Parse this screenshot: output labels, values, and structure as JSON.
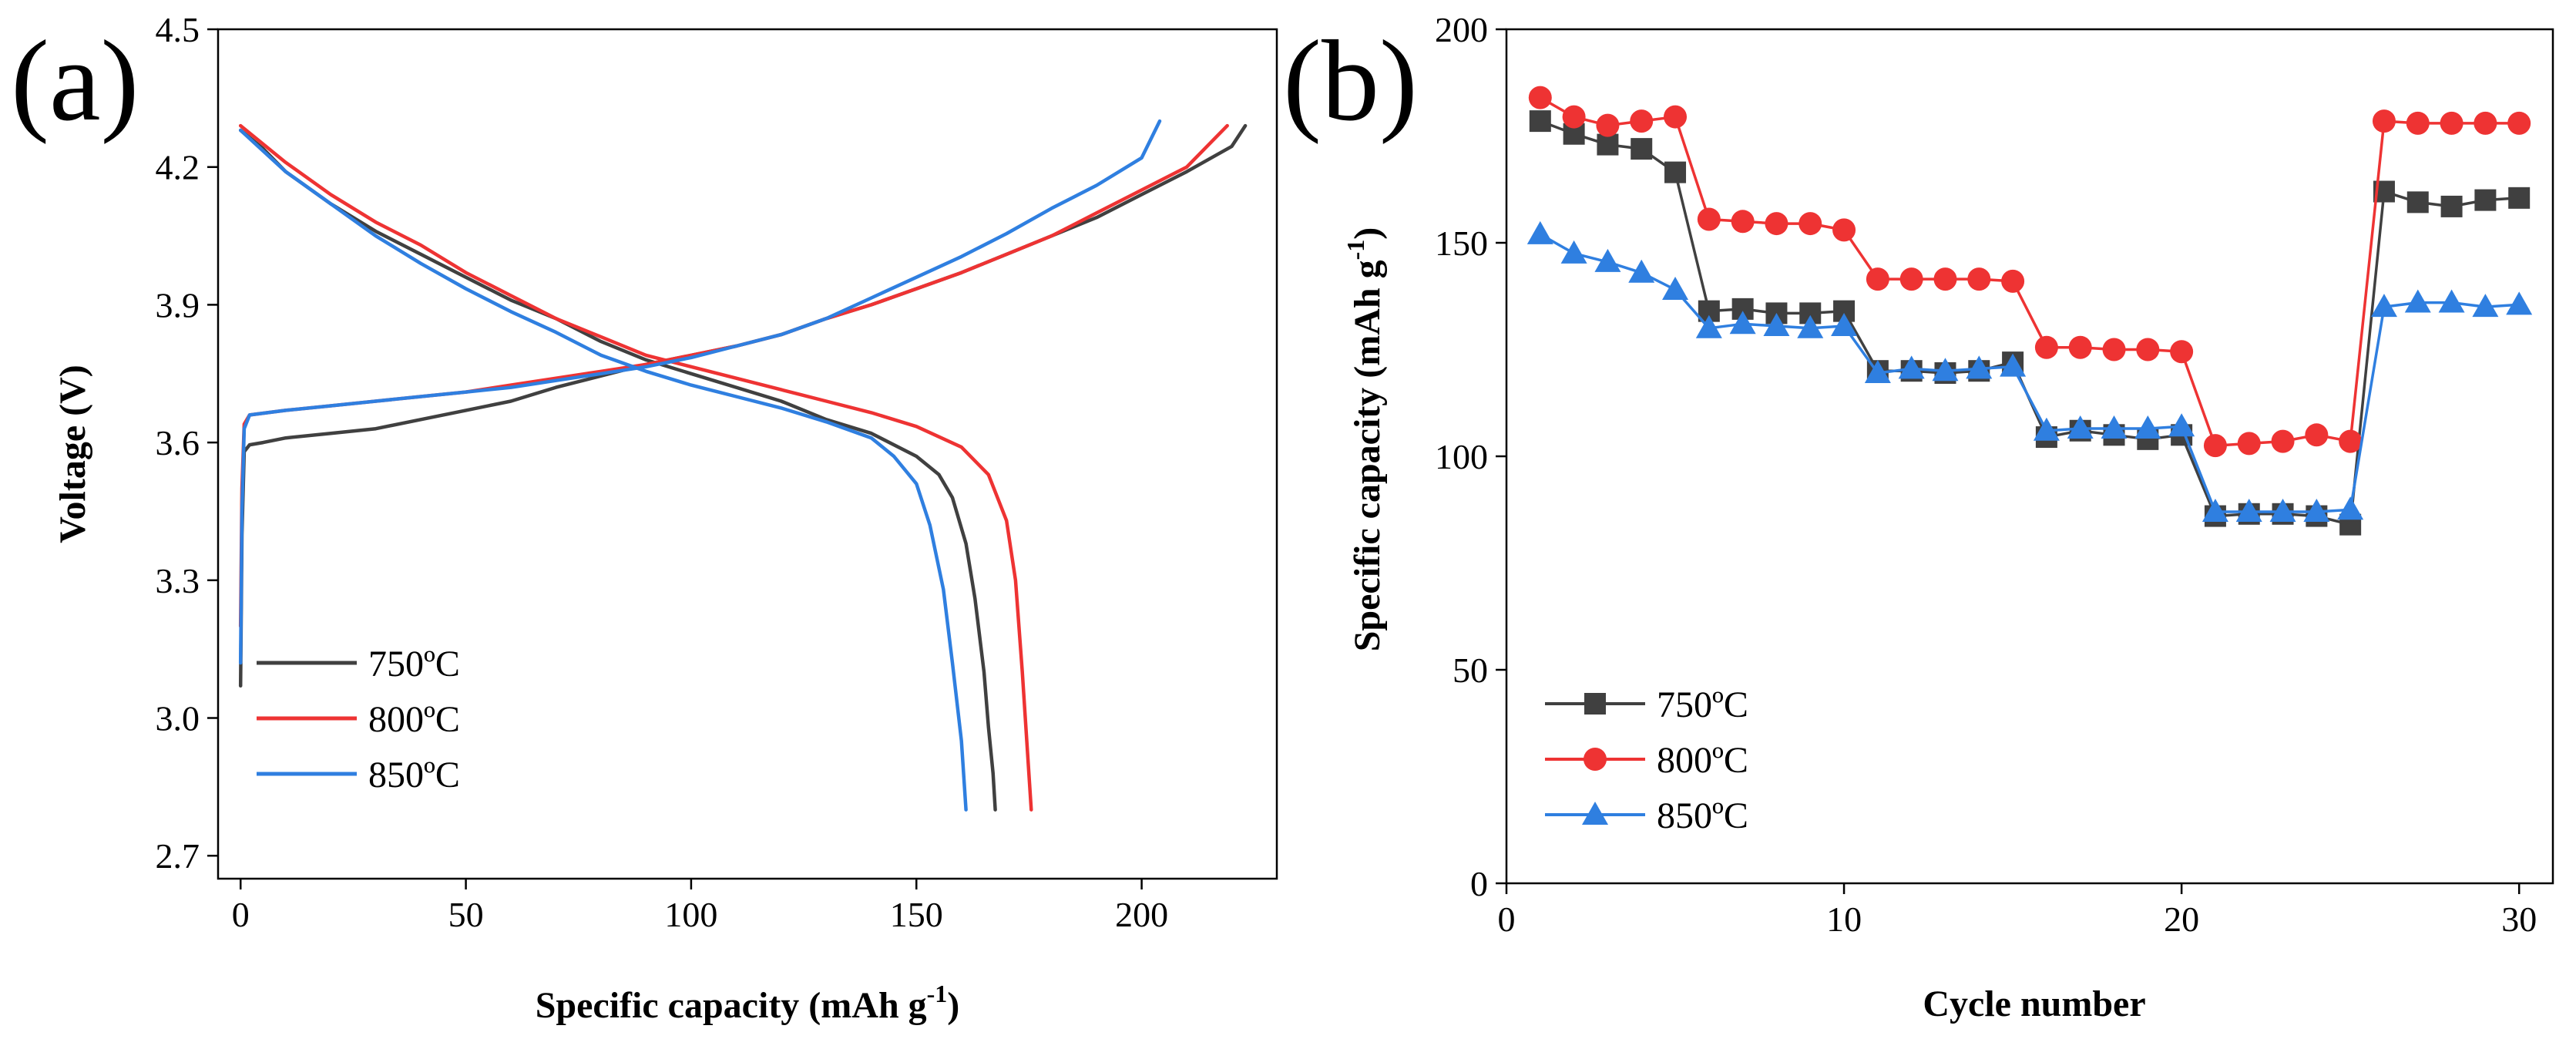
{
  "chart_data": [
    {
      "panel": "(a)",
      "type": "line",
      "xlabel": "Specific capacity (mAh g",
      "xlabel_sup": "-1",
      "xlabel_end": ")",
      "ylabel": "Voltage (V)",
      "xlim": [
        -5,
        230
      ],
      "ylim": [
        2.65,
        4.5
      ],
      "xticks": [
        0,
        50,
        100,
        150,
        200
      ],
      "xtick_labels": [
        "0",
        "50",
        "100",
        "150",
        "200"
      ],
      "yticks": [
        2.7,
        3.0,
        3.3,
        3.6,
        3.9,
        4.2,
        4.5
      ],
      "ytick_labels": [
        "2.7",
        "3.0",
        "3.3",
        "3.6",
        "3.9",
        "4.2",
        "4.5"
      ],
      "legend_position": "bottom-left",
      "series": [
        {
          "name": "750ºC",
          "color": "#404040",
          "charge": [
            [
              0,
              3.07
            ],
            [
              0.3,
              3.4
            ],
            [
              0.8,
              3.58
            ],
            [
              2,
              3.595
            ],
            [
              5,
              3.6
            ],
            [
              10,
              3.61
            ],
            [
              20,
              3.62
            ],
            [
              30,
              3.63
            ],
            [
              40,
              3.65
            ],
            [
              50,
              3.67
            ],
            [
              60,
              3.69
            ],
            [
              70,
              3.72
            ],
            [
              80,
              3.745
            ],
            [
              90,
              3.77
            ],
            [
              100,
              3.79
            ],
            [
              110,
              3.81
            ],
            [
              120,
              3.835
            ],
            [
              130,
              3.87
            ],
            [
              140,
              3.9
            ],
            [
              150,
              3.935
            ],
            [
              160,
              3.97
            ],
            [
              170,
              4.01
            ],
            [
              180,
              4.05
            ],
            [
              190,
              4.09
            ],
            [
              200,
              4.14
            ],
            [
              210,
              4.19
            ],
            [
              220,
              4.245
            ],
            [
              223,
              4.29
            ]
          ],
          "discharge": [
            [
              0,
              4.28
            ],
            [
              5,
              4.24
            ],
            [
              10,
              4.19
            ],
            [
              20,
              4.12
            ],
            [
              30,
              4.06
            ],
            [
              40,
              4.01
            ],
            [
              50,
              3.96
            ],
            [
              60,
              3.91
            ],
            [
              70,
              3.87
            ],
            [
              80,
              3.82
            ],
            [
              90,
              3.78
            ],
            [
              100,
              3.75
            ],
            [
              110,
              3.72
            ],
            [
              120,
              3.69
            ],
            [
              130,
              3.65
            ],
            [
              140,
              3.62
            ],
            [
              150,
              3.57
            ],
            [
              155,
              3.53
            ],
            [
              158,
              3.48
            ],
            [
              161,
              3.38
            ],
            [
              163,
              3.26
            ],
            [
              165,
              3.1
            ],
            [
              166,
              2.98
            ],
            [
              167,
              2.88
            ],
            [
              167.5,
              2.8
            ]
          ]
        },
        {
          "name": "800ºC",
          "color": "#ee3333",
          "charge": [
            [
              0,
              3.2
            ],
            [
              0.3,
              3.5
            ],
            [
              0.8,
              3.64
            ],
            [
              2,
              3.66
            ],
            [
              10,
              3.67
            ],
            [
              20,
              3.68
            ],
            [
              30,
              3.69
            ],
            [
              40,
              3.7
            ],
            [
              50,
              3.71
            ],
            [
              60,
              3.725
            ],
            [
              70,
              3.74
            ],
            [
              80,
              3.755
            ],
            [
              90,
              3.77
            ],
            [
              100,
              3.79
            ],
            [
              110,
              3.81
            ],
            [
              120,
              3.835
            ],
            [
              130,
              3.87
            ],
            [
              140,
              3.9
            ],
            [
              150,
              3.935
            ],
            [
              160,
              3.97
            ],
            [
              170,
              4.01
            ],
            [
              180,
              4.05
            ],
            [
              190,
              4.1
            ],
            [
              200,
              4.15
            ],
            [
              210,
              4.2
            ],
            [
              219,
              4.29
            ]
          ],
          "discharge": [
            [
              0,
              4.29
            ],
            [
              10,
              4.21
            ],
            [
              20,
              4.14
            ],
            [
              30,
              4.08
            ],
            [
              40,
              4.03
            ],
            [
              50,
              3.97
            ],
            [
              60,
              3.92
            ],
            [
              70,
              3.87
            ],
            [
              80,
              3.83
            ],
            [
              90,
              3.79
            ],
            [
              100,
              3.765
            ],
            [
              110,
              3.74
            ],
            [
              120,
              3.715
            ],
            [
              130,
              3.69
            ],
            [
              140,
              3.665
            ],
            [
              150,
              3.635
            ],
            [
              160,
              3.59
            ],
            [
              166,
              3.53
            ],
            [
              170,
              3.43
            ],
            [
              172,
              3.3
            ],
            [
              173.5,
              3.1
            ],
            [
              174.5,
              2.95
            ],
            [
              175.5,
              2.8
            ]
          ]
        },
        {
          "name": "850ºC",
          "color": "#2f7fe0",
          "charge": [
            [
              0,
              3.12
            ],
            [
              0.3,
              3.45
            ],
            [
              0.8,
              3.63
            ],
            [
              2,
              3.66
            ],
            [
              10,
              3.67
            ],
            [
              20,
              3.68
            ],
            [
              30,
              3.69
            ],
            [
              40,
              3.7
            ],
            [
              50,
              3.71
            ],
            [
              60,
              3.72
            ],
            [
              70,
              3.735
            ],
            [
              80,
              3.75
            ],
            [
              90,
              3.765
            ],
            [
              100,
              3.785
            ],
            [
              110,
              3.81
            ],
            [
              120,
              3.835
            ],
            [
              130,
              3.87
            ],
            [
              140,
              3.915
            ],
            [
              150,
              3.96
            ],
            [
              160,
              4.005
            ],
            [
              170,
              4.055
            ],
            [
              180,
              4.11
            ],
            [
              190,
              4.16
            ],
            [
              200,
              4.22
            ],
            [
              204,
              4.3
            ]
          ],
          "discharge": [
            [
              0,
              4.28
            ],
            [
              10,
              4.19
            ],
            [
              20,
              4.12
            ],
            [
              30,
              4.05
            ],
            [
              40,
              3.99
            ],
            [
              50,
              3.935
            ],
            [
              60,
              3.885
            ],
            [
              70,
              3.84
            ],
            [
              80,
              3.79
            ],
            [
              90,
              3.755
            ],
            [
              100,
              3.725
            ],
            [
              110,
              3.7
            ],
            [
              120,
              3.675
            ],
            [
              130,
              3.645
            ],
            [
              140,
              3.61
            ],
            [
              145,
              3.57
            ],
            [
              150,
              3.51
            ],
            [
              153,
              3.42
            ],
            [
              156,
              3.28
            ],
            [
              158,
              3.12
            ],
            [
              160,
              2.95
            ],
            [
              161,
              2.8
            ]
          ]
        }
      ]
    },
    {
      "panel": "(b)",
      "type": "line",
      "xlabel": "Cycle number",
      "ylabel": "Specific capacity (mAh g",
      "ylabel_sup": "-1",
      "ylabel_end": ")",
      "xlim": [
        0,
        31
      ],
      "ylim": [
        0,
        200
      ],
      "xticks": [
        0,
        10,
        20,
        30
      ],
      "xtick_labels": [
        "0",
        "10",
        "20",
        "30"
      ],
      "yticks": [
        0,
        50,
        100,
        150,
        200
      ],
      "ytick_labels": [
        "0",
        "50",
        "100",
        "150",
        "200"
      ],
      "legend_position": "bottom-left",
      "x": [
        1,
        2,
        3,
        4,
        5,
        6,
        7,
        8,
        9,
        10,
        11,
        12,
        13,
        14,
        15,
        16,
        17,
        18,
        19,
        20,
        21,
        22,
        23,
        24,
        25,
        26,
        27,
        28,
        29,
        30
      ],
      "series": [
        {
          "name": "750ºC",
          "color": "#404040",
          "marker": "square",
          "values": [
            178.5,
            175.5,
            173,
            172,
            166.5,
            134,
            134.5,
            133.5,
            133.5,
            134,
            120,
            120,
            119.5,
            120,
            122,
            104.5,
            106,
            105,
            104,
            105,
            86,
            86.5,
            86.5,
            86,
            84,
            162,
            159.5,
            158.5,
            160,
            160.5
          ]
        },
        {
          "name": "800ºC",
          "color": "#ee3333",
          "marker": "circle",
          "values": [
            184,
            179.5,
            177.5,
            178.5,
            179.5,
            155.5,
            155,
            154.5,
            154.5,
            153,
            141.5,
            141.5,
            141.5,
            141.5,
            141,
            125.5,
            125.5,
            125,
            125,
            124.5,
            102.5,
            103,
            103.5,
            105,
            103.5,
            178.5,
            178,
            178,
            178,
            178
          ]
        },
        {
          "name": "850ºC",
          "color": "#2f7fe0",
          "marker": "triangle",
          "values": [
            152,
            147.5,
            145.5,
            143,
            139,
            130,
            131,
            130.5,
            130,
            130.5,
            119.5,
            120.5,
            120,
            120.5,
            121,
            106,
            106.5,
            106.5,
            106.5,
            107,
            87,
            87,
            87,
            87,
            87.5,
            135,
            136,
            136,
            135,
            135.5
          ]
        }
      ]
    }
  ]
}
